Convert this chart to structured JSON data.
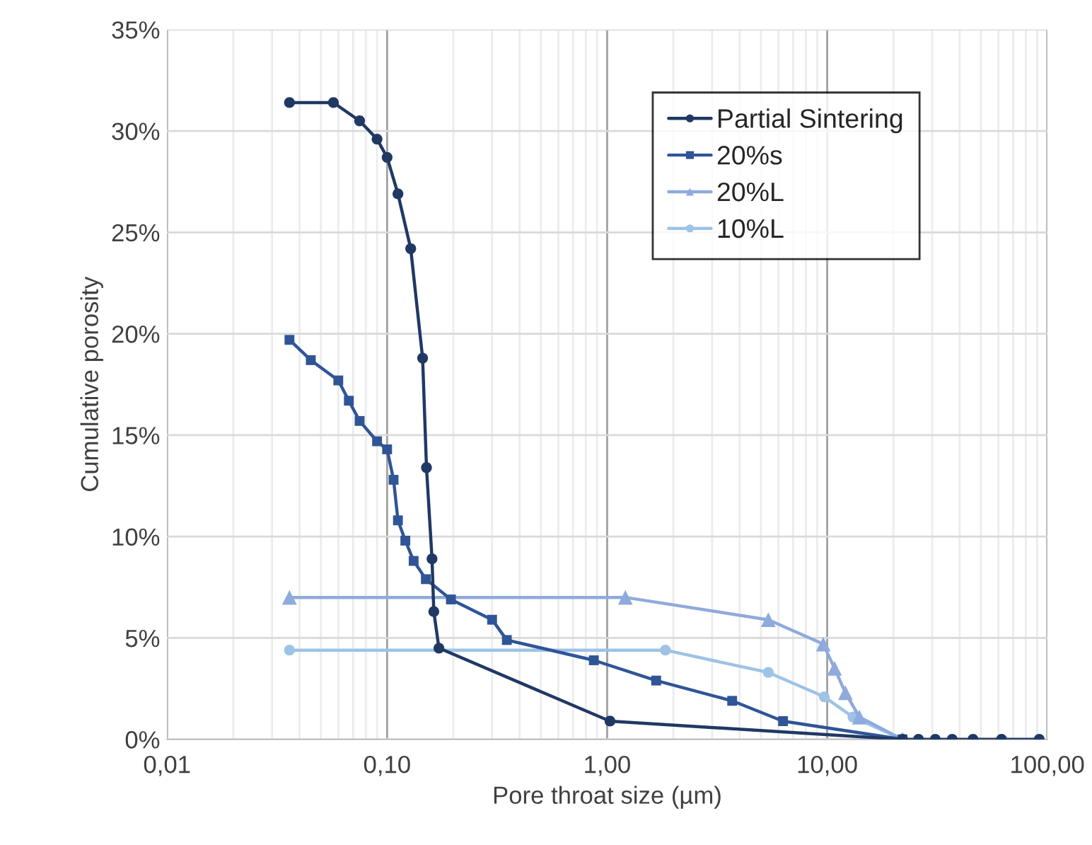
{
  "chart_data": {
    "type": "line",
    "xlabel": "Pore throat size (µm)",
    "ylabel": "Cumulative porosity",
    "log": "x",
    "grid": true,
    "legend": "top right",
    "line_style": "solid",
    "xlim": [
      0.01,
      100
    ],
    "xticks": [
      {
        "value": 0.01,
        "label": "0,01"
      },
      {
        "value": 0.1,
        "label": "0,10"
      },
      {
        "value": 1,
        "label": "1,00"
      },
      {
        "value": 10,
        "label": "10,00"
      },
      {
        "value": 100,
        "label": "100,00"
      }
    ],
    "ylim": [
      0,
      35
    ],
    "yticks": [
      {
        "value": 0,
        "label": "0%"
      },
      {
        "value": 5,
        "label": "5%"
      },
      {
        "value": 10,
        "label": "10%"
      },
      {
        "value": 15,
        "label": "15%"
      },
      {
        "value": 20,
        "label": "20%"
      },
      {
        "value": 25,
        "label": "25%"
      },
      {
        "value": 30,
        "label": "30%"
      },
      {
        "value": 35,
        "label": "35%"
      }
    ],
    "series": [
      {
        "name": "Partial Sintering",
        "color": "#203864",
        "marker": "circle",
        "x": [
          0.036,
          0.057,
          0.075,
          0.09,
          0.1,
          0.112,
          0.128,
          0.145,
          0.151,
          0.16,
          0.163,
          0.172,
          1.03,
          22,
          26,
          31,
          37,
          46,
          62,
          92
        ],
        "values": [
          31.4,
          31.4,
          30.5,
          29.6,
          28.7,
          26.9,
          24.2,
          18.8,
          13.4,
          8.9,
          6.3,
          4.5,
          0.9,
          0,
          0,
          0,
          0,
          0,
          0,
          0
        ]
      },
      {
        "name": "20%s",
        "color": "#2f5597",
        "marker": "square",
        "x": [
          0.036,
          0.045,
          0.06,
          0.067,
          0.075,
          0.09,
          0.1,
          0.107,
          0.112,
          0.121,
          0.132,
          0.15,
          0.195,
          0.3,
          0.35,
          0.87,
          1.67,
          3.7,
          6.3,
          22
        ],
        "values": [
          19.7,
          18.7,
          17.7,
          16.7,
          15.7,
          14.7,
          14.3,
          12.8,
          10.8,
          9.8,
          8.8,
          7.9,
          6.9,
          5.9,
          4.9,
          3.9,
          2.9,
          1.9,
          0.9,
          0
        ]
      },
      {
        "name": "20%L",
        "color": "#8faadc",
        "marker": "triangle",
        "x": [
          0.036,
          1.21,
          5.4,
          9.6,
          10.8,
          12.1,
          14,
          22
        ],
        "values": [
          7.0,
          7.0,
          5.9,
          4.7,
          3.5,
          2.3,
          1.1,
          0
        ]
      },
      {
        "name": "10%L",
        "color": "#9dc3e6",
        "marker": "circle",
        "x": [
          0.036,
          1.84,
          5.4,
          9.7,
          13.1,
          22
        ],
        "values": [
          4.4,
          4.4,
          3.3,
          2.1,
          1.1,
          0
        ]
      }
    ]
  }
}
